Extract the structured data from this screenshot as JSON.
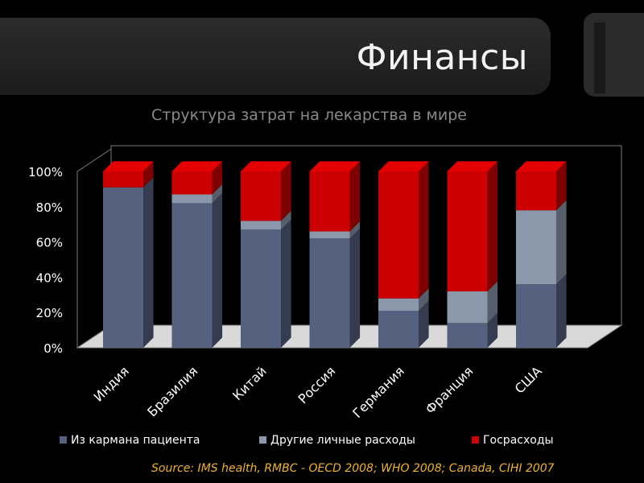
{
  "header": {
    "title": "Финансы",
    "subtitle": "Структура затрат на лекарства в мире"
  },
  "source": "Source: IMS health, RMBC -  OECD 2008; WHO 2008; Canada, CIHI 2007",
  "chart_data": {
    "type": "bar",
    "stacked": true,
    "three_d": true,
    "categories": [
      "Индия",
      "Бразилия",
      "Китай",
      "Россия",
      "Германия",
      "Франция",
      "США"
    ],
    "series": [
      {
        "name": "Из кармана пациента",
        "color": "#56607f",
        "values": [
          91,
          82,
          67,
          62,
          21,
          14,
          36
        ]
      },
      {
        "name": "Другие личные расходы",
        "color": "#8b97aa",
        "values": [
          0,
          5,
          5,
          4,
          7,
          18,
          42
        ]
      },
      {
        "name": "Госрасходы",
        "color": "#cc0000",
        "values": [
          9,
          13,
          28,
          34,
          72,
          68,
          22
        ]
      }
    ],
    "ylim": [
      0,
      100
    ],
    "yticks": [
      "0%",
      "20%",
      "40%",
      "60%",
      "80%",
      "100%"
    ],
    "legend_position": "bottom",
    "grid": false,
    "xlabel": "",
    "ylabel": ""
  }
}
